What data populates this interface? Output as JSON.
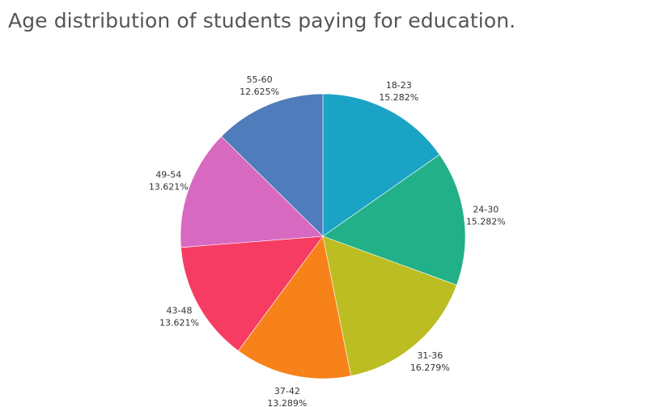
{
  "chart_data": {
    "type": "pie",
    "title": "Age distribution of students paying for education.",
    "slices": [
      {
        "label": "18-23",
        "value": 15.282,
        "value_label": "15.282%",
        "color": "#1ba3c6"
      },
      {
        "label": "24-30",
        "value": 15.282,
        "value_label": "15.282%",
        "color": "#21b087"
      },
      {
        "label": "31-36",
        "value": 16.279,
        "value_label": "16.279%",
        "color": "#bcbd22"
      },
      {
        "label": "37-42",
        "value": 13.289,
        "value_label": "13.289%",
        "color": "#f8821a"
      },
      {
        "label": "43-48",
        "value": 13.621,
        "value_label": "13.621%",
        "color": "#f63c63"
      },
      {
        "label": "49-54",
        "value": 13.621,
        "value_label": "13.621%",
        "color": "#d869c0"
      },
      {
        "label": "55-60",
        "value": 12.625,
        "value_label": "12.625%",
        "color": "#4f7cba"
      }
    ],
    "start_angle": "12 o'clock",
    "direction": "clockwise",
    "labels": "outside"
  }
}
